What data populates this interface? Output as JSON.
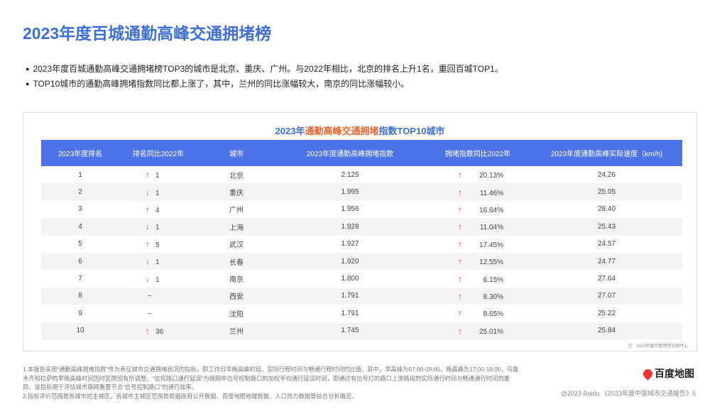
{
  "title": "2023年度百城通勤高峰交通拥堵榜",
  "bullets": [
    "2023年度百城通勤高峰交通拥堵榜TOP3的城市是北京、重庆、广州。与2022年相比，北京的排名上升1名，重回百城TOP1。",
    "TOP10城市的通勤高峰拥堵指数同比都上涨了，其中，兰州的同比涨幅较大，南京的同比涨幅较小。"
  ],
  "chart_title": {
    "a": "2023年",
    "b": "通勤高峰交通拥堵",
    "c": "指数TOP10城市"
  },
  "colors": {
    "accent": "#3d6fd9",
    "header": "#4d73e8",
    "highlight": "#f0642c",
    "up": "#e23a2e",
    "down": "#3aa53a"
  },
  "columns": [
    "2023年度排名",
    "排名同比2022年",
    "城市",
    "2023年度通勤高峰拥堵指数",
    "拥堵指数同比2022年",
    "2023年度通勤高峰实际速度（km/h)"
  ],
  "rows": [
    {
      "rank": "1",
      "dir": "up",
      "change": "1",
      "city": "北京",
      "index": "2.125",
      "yoy": "20.13%",
      "speed": "24.26"
    },
    {
      "rank": "2",
      "dir": "down",
      "change": "1",
      "city": "重庆",
      "index": "1.995",
      "yoy": "11.46%",
      "speed": "25.05"
    },
    {
      "rank": "3",
      "dir": "up",
      "change": "4",
      "city": "广州",
      "index": "1.956",
      "yoy": "16.64%",
      "speed": "28.40"
    },
    {
      "rank": "4",
      "dir": "down",
      "change": "1",
      "city": "上海",
      "index": "1.928",
      "yoy": "11.04%",
      "speed": "25.43"
    },
    {
      "rank": "5",
      "dir": "up",
      "change": "5",
      "city": "武汉",
      "index": "1.927",
      "yoy": "17.45%",
      "speed": "24.57"
    },
    {
      "rank": "6",
      "dir": "down",
      "change": "1",
      "city": "长春",
      "index": "1.920",
      "yoy": "12.55%",
      "speed": "24.77"
    },
    {
      "rank": "7",
      "dir": "down",
      "change": "1",
      "city": "南京",
      "index": "1.800",
      "yoy": "6.15%",
      "speed": "27.64"
    },
    {
      "rank": "8",
      "dir": "none",
      "change": "–",
      "city": "西安",
      "index": "1.791",
      "yoy": "8.30%",
      "speed": "27.07"
    },
    {
      "rank": "9",
      "dir": "none",
      "change": "–",
      "city": "沈阳",
      "index": "1.791",
      "yoy": "8.65%",
      "speed": "25.22"
    },
    {
      "rank": "10",
      "dir": "up",
      "change": "36",
      "city": "兰州",
      "index": "1.745",
      "yoy": "25.01%",
      "speed": "25.84"
    }
  ],
  "table_note": "注：2023年度完整榜单见附件1。",
  "footnotes": [
    "1.本报告采用“通勤高峰拥堵指数”作为表征城市交通拥堵状况的指标，即工作日早晚高峰时段，实际行程时间与畅通行程时间的比值。其中，早高峰为07:00-09:00，晚高峰为17:00-19:00，乌鲁木齐和拉萨的早晚高峰时间因时区原因有所调整。“信控路口通行延误”为路网中信号控制路口的加权平均通行延误时间，即通过有信号灯的路口上游路段的实际通行时间与畅通通行时间的差异。该指标用于评估城市路网重要节点“信号控制路口”的通行效率。",
    "2.指标评价范围是各城市的主城区，各城市主城区范围是根据政府公开数据、百度地图地理数据、人口热力数据等综合分析确定。"
  ],
  "logo": "百度地图",
  "copyright": "@2023 Baidu 《2023年度中国城市交通报告》5"
}
